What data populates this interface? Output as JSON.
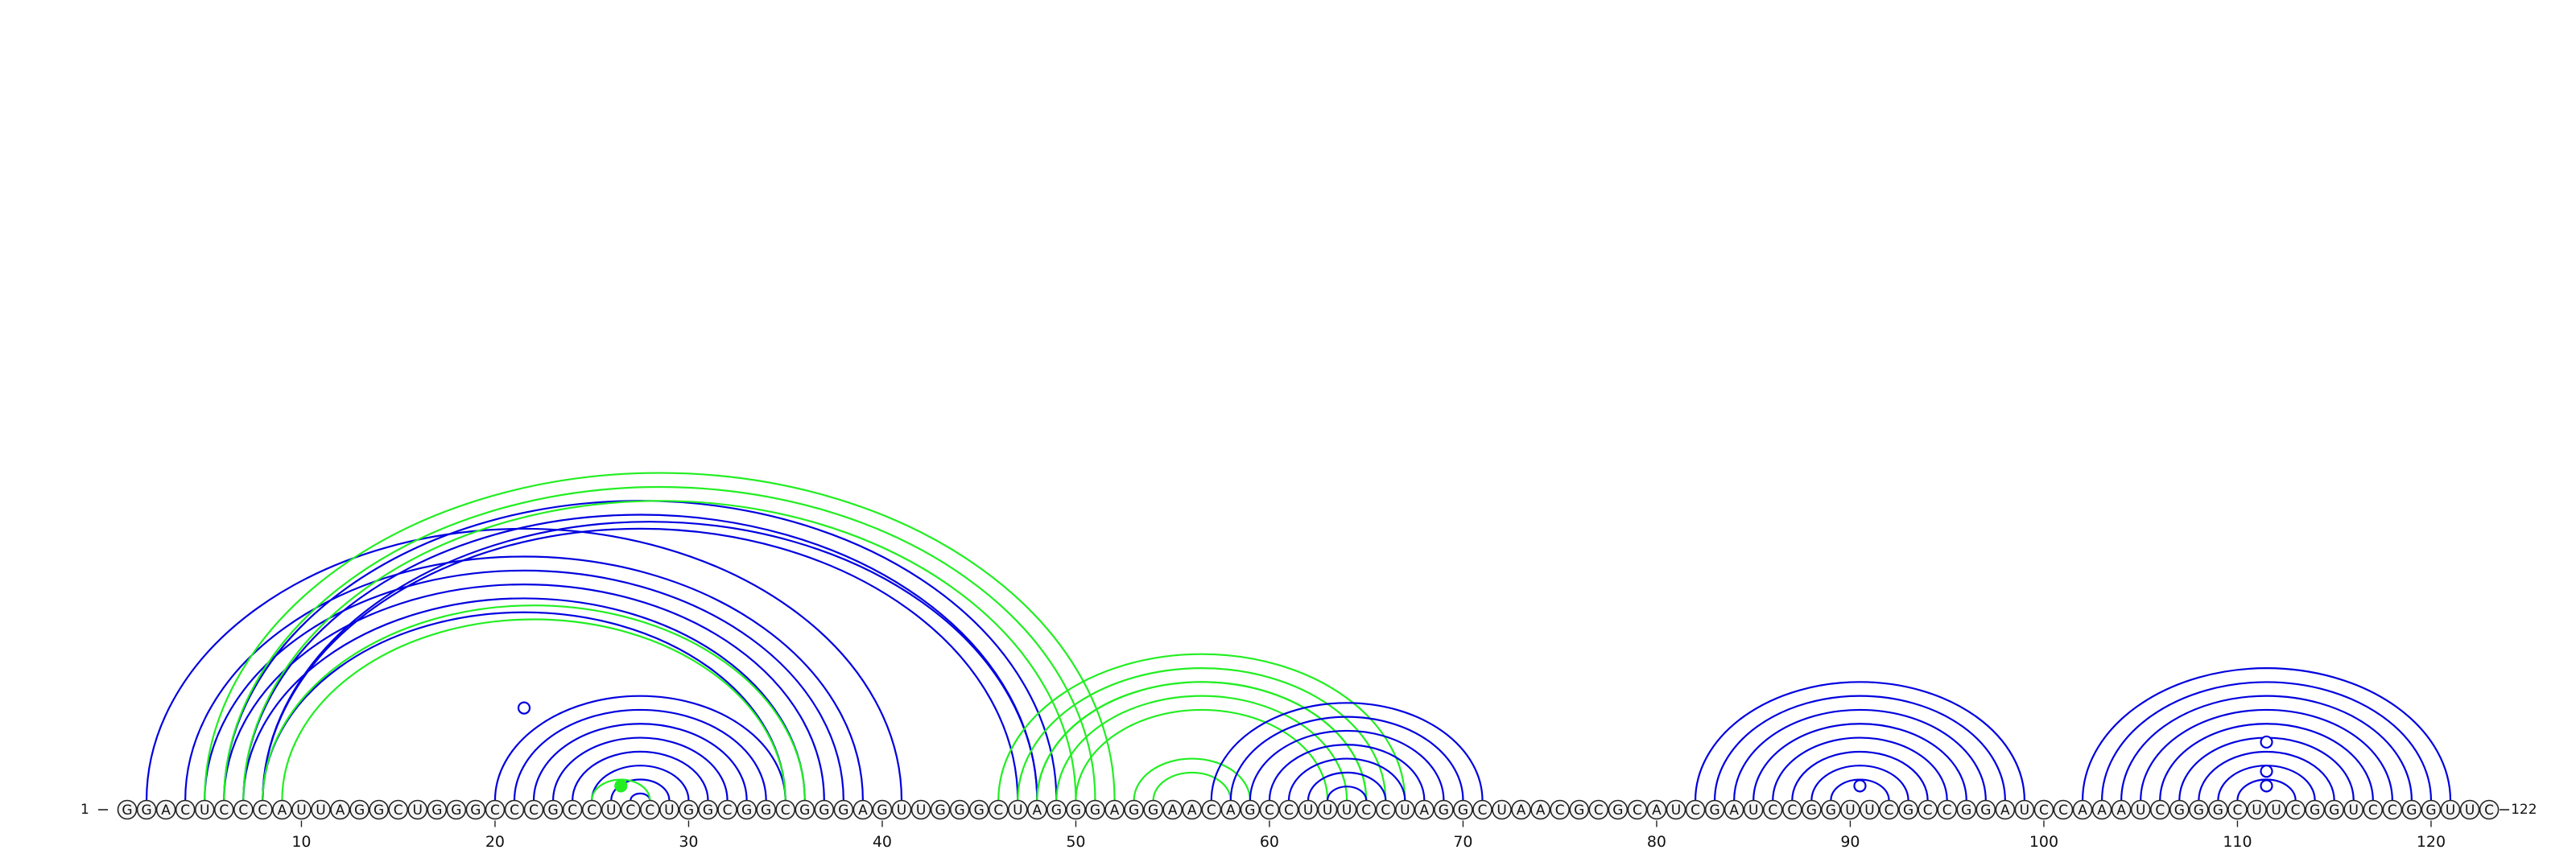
{
  "sequence": "GGACUCCCAUUAGGCUGGGCCCGCCUCCUGGCGGCGGGAGUUGGGCUAGGGAGGAACAGCCUUUCCUAGGCUAACGCGCAUCGAUCCGGUUCGCCGGAUCCAAAUCGGGCUUCGGUCCGGUUC",
  "start_label": "1",
  "end_label": "122",
  "ticks": [
    10,
    20,
    30,
    40,
    50,
    60,
    70,
    80,
    90,
    100,
    110,
    120
  ],
  "colors": {
    "blue": "#0000e0",
    "green": "#22ee22"
  },
  "helices": [
    {
      "color": "blue",
      "i": 2,
      "j": 41,
      "n": 1
    },
    {
      "color": "blue",
      "i": 4,
      "j": 39,
      "n": 4
    },
    {
      "color": "blue",
      "i": 8,
      "j": 35,
      "n": 1
    },
    {
      "color": "blue",
      "i": 6,
      "j": 49,
      "n": 1
    },
    {
      "color": "blue",
      "i": 7,
      "j": 48,
      "n": 2
    },
    {
      "color": "blue",
      "i": 8,
      "j": 48,
      "n": 1
    },
    {
      "color": "blue",
      "i": 20,
      "j": 35,
      "n": 9
    },
    {
      "color": "green",
      "i": 25,
      "j": 28,
      "n": 1
    },
    {
      "color": "green",
      "i": 5,
      "j": 52,
      "n": 1
    },
    {
      "color": "green",
      "i": 6,
      "j": 51,
      "n": 1
    },
    {
      "color": "green",
      "i": 7,
      "j": 50,
      "n": 1
    },
    {
      "color": "green",
      "i": 8,
      "j": 36,
      "n": 2
    },
    {
      "color": "green",
      "i": 46,
      "j": 67,
      "n": 1
    },
    {
      "color": "green",
      "i": 47,
      "j": 66,
      "n": 2
    },
    {
      "color": "green",
      "i": 48,
      "j": 65,
      "n": 2
    },
    {
      "color": "green",
      "i": 50,
      "j": 63,
      "n": 1
    },
    {
      "color": "green",
      "i": 53,
      "j": 59,
      "n": 2
    },
    {
      "color": "blue",
      "i": 57,
      "j": 71,
      "n": 1
    },
    {
      "color": "blue",
      "i": 58,
      "j": 70,
      "n": 7
    },
    {
      "color": "blue",
      "i": 82,
      "j": 99,
      "n": 8
    },
    {
      "color": "blue",
      "i": 102,
      "j": 121,
      "n": 9
    }
  ],
  "markers": [
    {
      "x": 21.5,
      "y": 0.38,
      "color": "blue",
      "fill": "white"
    },
    {
      "x": 26.5,
      "y": 0.06,
      "color": "green",
      "fill": "green"
    },
    {
      "x": 90.5,
      "y": 0.06,
      "color": "blue",
      "fill": "white"
    },
    {
      "x": 111.5,
      "y": 0.06,
      "color": "blue",
      "fill": "white"
    },
    {
      "x": 111.5,
      "y": 0.12,
      "color": "blue",
      "fill": "white"
    },
    {
      "x": 111.5,
      "y": 0.24,
      "color": "blue",
      "fill": "white"
    }
  ]
}
